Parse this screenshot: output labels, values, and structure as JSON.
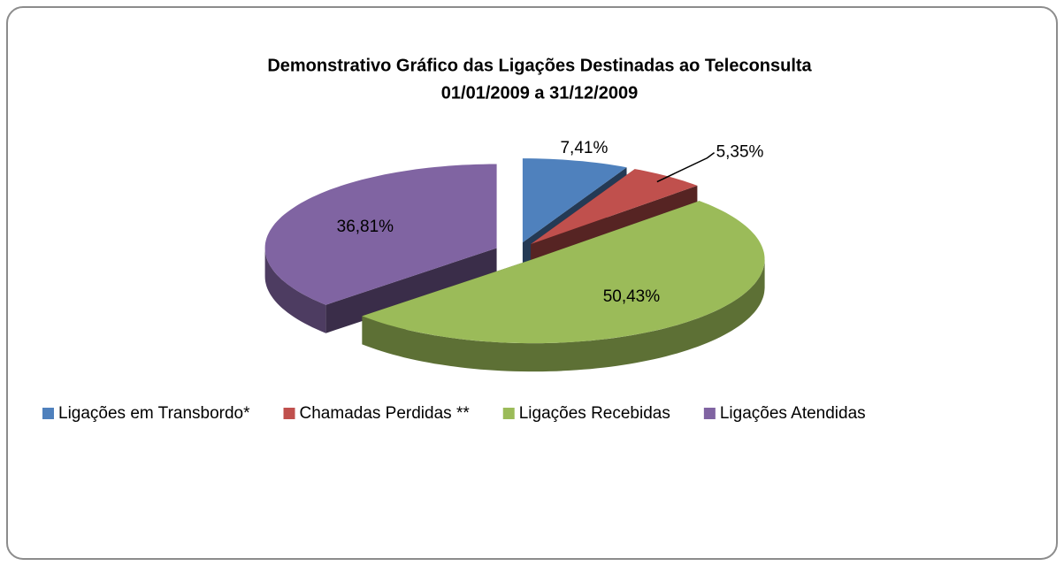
{
  "chart_data": {
    "type": "pie",
    "title": "Demonstrativo Gráfico das Ligações Destinadas ao Teleconsulta",
    "subtitle": "01/01/2009 a 31/12/2009",
    "categories": [
      "Ligações em Transbordo*",
      "Chamadas Perdidas **",
      "Ligações Recebidas",
      "Ligações Atendidas"
    ],
    "values": [
      7.41,
      5.35,
      50.43,
      36.81
    ],
    "value_labels": [
      "7,41%",
      "5,35%",
      "50,43%",
      "36,81%"
    ],
    "colors": [
      "#4f81bd",
      "#c0504d",
      "#9bbb59",
      "#8064a2"
    ],
    "legend": "bottom"
  }
}
